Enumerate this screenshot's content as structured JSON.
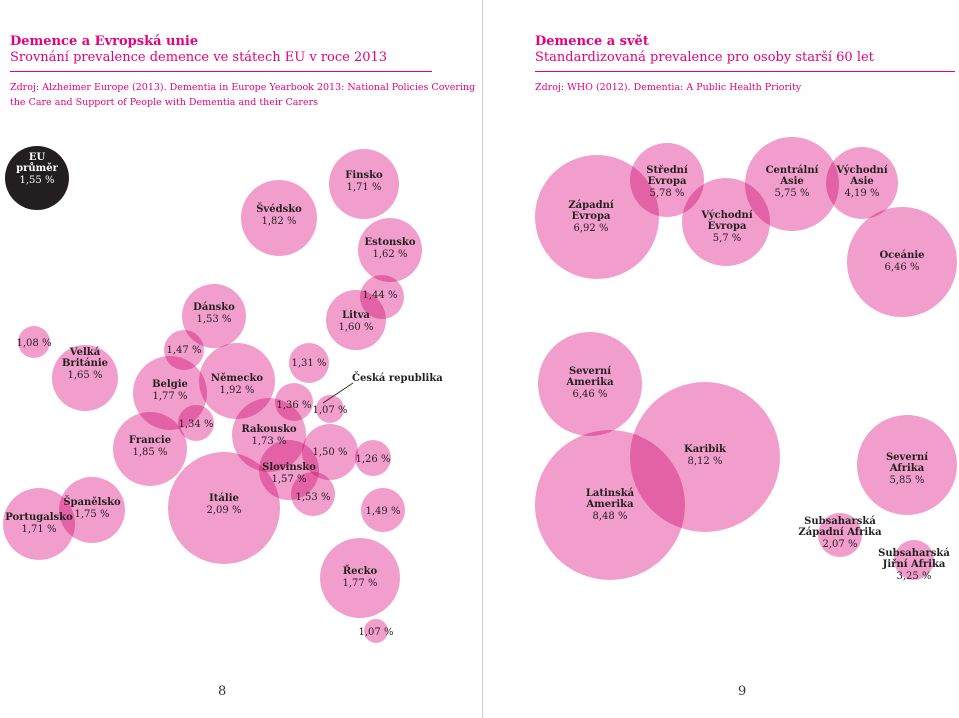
{
  "left": {
    "title": "Demence a Evropská unie",
    "subtitle": "Srovnání prevalence demence ve státech EU v roce 2013",
    "source_line1": "Zdroj: Alzheimer Europe (2013). Dementia in Europe Yearbook 2013: National Policies Covering",
    "source_line2": "the Care and Support of People with Dementia and their Carers",
    "page": "8"
  },
  "right": {
    "title": "Demence a svět",
    "subtitle": "Standardizovaná prevalence pro osoby starší 60 let",
    "source": "Zdroj: WHO (2012). Dementia: A Public Health Priority",
    "page": "9"
  },
  "colors": {
    "accent": "#e6007e",
    "bubble": "#ee86c0",
    "dark": "#231f20"
  },
  "chart_data": [
    {
      "type": "bubble",
      "title": "Demence a Evropská unie",
      "unit": "%",
      "items": [
        {
          "name": "EU průměr",
          "value": "1,55 %"
        },
        {
          "name": "Švédsko",
          "value": "1,82 %"
        },
        {
          "name": "Finsko",
          "value": "1,71 %"
        },
        {
          "name": "Estonsko",
          "value": "1,62 %"
        },
        {
          "name": "Dánsko",
          "value": "1,53 %"
        },
        {
          "name": "Litva",
          "value": "1,60 %"
        },
        {
          "name": "",
          "value": "1,44 %"
        },
        {
          "name": "",
          "value": "1,08 %"
        },
        {
          "name": "Velká Británie",
          "value": "1,65 %"
        },
        {
          "name": "",
          "value": "1,47 %"
        },
        {
          "name": "Belgie",
          "value": "1,77 %"
        },
        {
          "name": "Německo",
          "value": "1,92 %"
        },
        {
          "name": "",
          "value": "1,31 %"
        },
        {
          "name": "Česká republika",
          "value": ""
        },
        {
          "name": "",
          "value": "1,36 %"
        },
        {
          "name": "",
          "value": "1,07 %"
        },
        {
          "name": "",
          "value": "1,34 %"
        },
        {
          "name": "Francie",
          "value": "1,85 %"
        },
        {
          "name": "Rakousko",
          "value": "1,73 %"
        },
        {
          "name": "",
          "value": "1,50 %"
        },
        {
          "name": "",
          "value": "1,26 %"
        },
        {
          "name": "Slovinsko",
          "value": "1,57 %"
        },
        {
          "name": "",
          "value": "1,53 %"
        },
        {
          "name": "Itálie",
          "value": "2,09 %"
        },
        {
          "name": "",
          "value": "1,49 %"
        },
        {
          "name": "Španělsko",
          "value": "1,75 %"
        },
        {
          "name": "Portugalsko",
          "value": "1,71 %"
        },
        {
          "name": "Řecko",
          "value": "1,77 %"
        },
        {
          "name": "",
          "value": "1,07 %"
        }
      ]
    },
    {
      "type": "bubble",
      "title": "Demence a svět",
      "unit": "%",
      "items": [
        {
          "name": "Západní Evropa",
          "value": "6,92 %"
        },
        {
          "name": "Střední Evropa",
          "value": "5,78 %"
        },
        {
          "name": "Východní Evropa",
          "value": "5,7 %"
        },
        {
          "name": "Centrální Asie",
          "value": "5,75 %"
        },
        {
          "name": "Východní Asie",
          "value": "4,19 %"
        },
        {
          "name": "Oceánie",
          "value": "6,46 %"
        },
        {
          "name": "Severní Amerika",
          "value": "6,46 %"
        },
        {
          "name": "Karibik",
          "value": "8,12 %"
        },
        {
          "name": "Latinská Amerika",
          "value": "8,48 %"
        },
        {
          "name": "Severní Afrika",
          "value": "5,85 %"
        },
        {
          "name": "Subsaharská Západní Afrika",
          "value": "2,07 %"
        },
        {
          "name": "Subsaharská Jiřní Afrika",
          "value": "3,25 %"
        }
      ]
    }
  ]
}
